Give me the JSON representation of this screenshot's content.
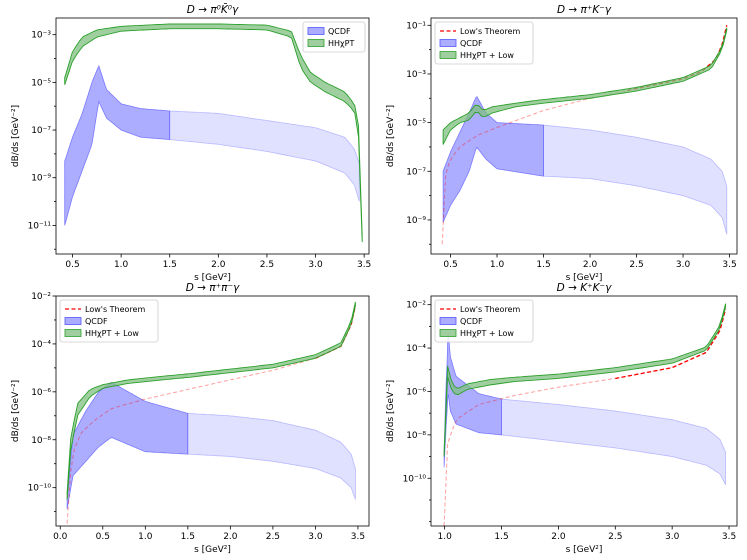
{
  "chart_data": [
    {
      "type": "area",
      "title": "D → π⁰K̄⁰γ",
      "xlabel": "s [GeV²]",
      "ylabel": "dB/ds [GeV⁻²]",
      "xlim": [
        0.33,
        3.55
      ],
      "ylog": true,
      "ylim_exp": [
        -12.2,
        -2.3
      ],
      "xticks": [
        0.5,
        1.0,
        1.5,
        2.0,
        2.5,
        3.0,
        3.5
      ],
      "xtick_labels": [
        "0.5",
        "1.0",
        "1.5",
        "2.0",
        "2.5",
        "3.0",
        "3.5"
      ],
      "yticks_exp": [
        -11,
        -9,
        -7,
        -5,
        -3
      ],
      "ytick_labels": [
        "10⁻¹¹",
        "10⁻⁹",
        "10⁻⁷",
        "10⁻⁵",
        "10⁻³"
      ],
      "legend_position": "top-right",
      "legend": [
        "QCDF",
        "HHχPT"
      ],
      "qcdf_lower": [
        [
          0.42,
          -11.0
        ],
        [
          0.5,
          -9.8
        ],
        [
          0.6,
          -8.7
        ],
        [
          0.7,
          -7.6
        ],
        [
          0.77,
          -5.8
        ],
        [
          0.85,
          -6.5
        ],
        [
          1.0,
          -7.0
        ],
        [
          1.2,
          -7.3
        ],
        [
          1.5,
          -7.4
        ],
        [
          2.0,
          -7.6
        ],
        [
          2.5,
          -7.9
        ],
        [
          3.0,
          -8.3
        ],
        [
          3.3,
          -8.8
        ],
        [
          3.4,
          -9.3
        ],
        [
          3.45,
          -10.0
        ]
      ],
      "qcdf_upper": [
        [
          0.42,
          -8.3
        ],
        [
          0.5,
          -7.3
        ],
        [
          0.6,
          -6.3
        ],
        [
          0.7,
          -5.0
        ],
        [
          0.77,
          -4.3
        ],
        [
          0.85,
          -5.3
        ],
        [
          1.0,
          -5.9
        ],
        [
          1.2,
          -6.1
        ],
        [
          1.5,
          -6.2
        ],
        [
          2.0,
          -6.3
        ],
        [
          2.5,
          -6.6
        ],
        [
          3.0,
          -6.9
        ],
        [
          3.3,
          -7.3
        ],
        [
          3.4,
          -7.8
        ],
        [
          3.45,
          -8.4
        ]
      ],
      "qcdf_strong_max_x": 1.5,
      "green_lower": [
        [
          0.42,
          -5.1
        ],
        [
          0.5,
          -4.1
        ],
        [
          0.6,
          -3.5
        ],
        [
          0.75,
          -3.1
        ],
        [
          1.0,
          -2.85
        ],
        [
          1.5,
          -2.75
        ],
        [
          2.0,
          -2.75
        ],
        [
          2.5,
          -2.8
        ],
        [
          2.75,
          -3.1
        ],
        [
          2.85,
          -4.4
        ],
        [
          2.95,
          -5.0
        ],
        [
          3.1,
          -5.4
        ],
        [
          3.3,
          -5.8
        ],
        [
          3.4,
          -6.2
        ],
        [
          3.45,
          -7.5
        ],
        [
          3.48,
          -11.7
        ]
      ],
      "green_upper": [
        [
          0.42,
          -4.8
        ],
        [
          0.5,
          -3.7
        ],
        [
          0.6,
          -3.1
        ],
        [
          0.75,
          -2.8
        ],
        [
          1.0,
          -2.65
        ],
        [
          1.5,
          -2.55
        ],
        [
          2.0,
          -2.55
        ],
        [
          2.5,
          -2.6
        ],
        [
          2.75,
          -2.85
        ],
        [
          2.85,
          -3.9
        ],
        [
          2.95,
          -4.6
        ],
        [
          3.1,
          -5.0
        ],
        [
          3.3,
          -5.4
        ],
        [
          3.4,
          -5.9
        ],
        [
          3.45,
          -7.0
        ],
        [
          3.48,
          -11.4
        ]
      ]
    },
    {
      "type": "area",
      "title": "D → π⁺K⁻γ",
      "xlabel": "s [GeV²]",
      "ylabel": "dB/ds [GeV⁻²]",
      "xlim": [
        0.29,
        3.58
      ],
      "ylog": true,
      "ylim_exp": [
        -10.4,
        -0.7
      ],
      "xticks": [
        0.5,
        1.0,
        1.5,
        2.0,
        2.5,
        3.0,
        3.5
      ],
      "xtick_labels": [
        "0.5",
        "1.0",
        "1.5",
        "2.0",
        "2.5",
        "3.0",
        "3.5"
      ],
      "yticks_exp": [
        -9,
        -7,
        -5,
        -3,
        -1
      ],
      "ytick_labels": [
        "10⁻⁹",
        "10⁻⁷",
        "10⁻⁵",
        "10⁻³",
        "10⁻¹"
      ],
      "legend_position": "top-left",
      "legend": [
        "Low's Theorem",
        "QCDF",
        "HHχPT + Low"
      ],
      "low_line": [
        [
          0.41,
          -10.0
        ],
        [
          0.45,
          -7.0
        ],
        [
          0.5,
          -6.5
        ],
        [
          0.6,
          -6.0
        ],
        [
          0.8,
          -5.5
        ],
        [
          1.0,
          -5.2
        ],
        [
          1.5,
          -4.5
        ],
        [
          2.0,
          -4.0
        ],
        [
          2.5,
          -3.6
        ],
        [
          3.0,
          -3.2
        ],
        [
          3.2,
          -2.9
        ],
        [
          3.35,
          -2.4
        ],
        [
          3.42,
          -1.8
        ],
        [
          3.47,
          -1.0
        ]
      ],
      "low_solid_from_x": 2.4,
      "qcdf_lower": [
        [
          0.42,
          -9.1
        ],
        [
          0.5,
          -8.4
        ],
        [
          0.6,
          -7.8
        ],
        [
          0.7,
          -7.0
        ],
        [
          0.78,
          -6.0
        ],
        [
          0.88,
          -6.5
        ],
        [
          1.0,
          -6.9
        ],
        [
          1.5,
          -7.2
        ],
        [
          2.0,
          -7.3
        ],
        [
          2.5,
          -7.6
        ],
        [
          3.0,
          -8.0
        ],
        [
          3.3,
          -8.4
        ],
        [
          3.42,
          -8.9
        ],
        [
          3.47,
          -9.6
        ]
      ],
      "qcdf_upper": [
        [
          0.42,
          -7.0
        ],
        [
          0.5,
          -6.2
        ],
        [
          0.6,
          -5.4
        ],
        [
          0.7,
          -4.6
        ],
        [
          0.78,
          -3.9
        ],
        [
          0.88,
          -4.6
        ],
        [
          1.0,
          -5.0
        ],
        [
          1.5,
          -5.1
        ],
        [
          2.0,
          -5.3
        ],
        [
          2.5,
          -5.6
        ],
        [
          3.0,
          -6.0
        ],
        [
          3.3,
          -6.5
        ],
        [
          3.42,
          -7.0
        ],
        [
          3.47,
          -7.6
        ]
      ],
      "qcdf_strong_max_x": 1.5,
      "green_lower": [
        [
          0.42,
          -5.9
        ],
        [
          0.5,
          -5.3
        ],
        [
          0.6,
          -5.0
        ],
        [
          0.7,
          -4.9
        ],
        [
          0.78,
          -4.5
        ],
        [
          0.85,
          -4.8
        ],
        [
          0.95,
          -4.6
        ],
        [
          1.2,
          -4.35
        ],
        [
          1.5,
          -4.2
        ],
        [
          2.0,
          -4.0
        ],
        [
          2.5,
          -3.7
        ],
        [
          3.0,
          -3.3
        ],
        [
          3.3,
          -2.8
        ],
        [
          3.42,
          -2.0
        ],
        [
          3.47,
          -1.2
        ]
      ],
      "green_upper": [
        [
          0.42,
          -5.3
        ],
        [
          0.5,
          -5.0
        ],
        [
          0.6,
          -4.8
        ],
        [
          0.7,
          -4.6
        ],
        [
          0.78,
          -4.2
        ],
        [
          0.85,
          -4.5
        ],
        [
          0.95,
          -4.35
        ],
        [
          1.2,
          -4.2
        ],
        [
          1.5,
          -4.05
        ],
        [
          2.0,
          -3.85
        ],
        [
          2.5,
          -3.55
        ],
        [
          3.0,
          -3.15
        ],
        [
          3.3,
          -2.65
        ],
        [
          3.42,
          -1.9
        ],
        [
          3.47,
          -1.1
        ]
      ]
    },
    {
      "type": "area",
      "title": "D → π⁺π⁻γ",
      "xlabel": "s [GeV²]",
      "ylabel": "dB/ds [GeV⁻²]",
      "xlim": [
        -0.05,
        3.63
      ],
      "ylog": true,
      "ylim_exp": [
        -11.6,
        -2.0
      ],
      "xticks": [
        0.0,
        0.5,
        1.0,
        1.5,
        2.0,
        2.5,
        3.0,
        3.5
      ],
      "xtick_labels": [
        "0.0",
        "0.5",
        "1.0",
        "1.5",
        "2.0",
        "2.5",
        "3.0",
        "3.5"
      ],
      "yticks_exp": [
        -10,
        -8,
        -6,
        -4,
        -2
      ],
      "ytick_labels": [
        "10⁻¹⁰",
        "10⁻⁸",
        "10⁻⁶",
        "10⁻⁴",
        "10⁻²"
      ],
      "legend_position": "top-left",
      "legend": [
        "Low's Theorem",
        "QCDF",
        "HHχPT + Low"
      ],
      "low_line": [
        [
          0.08,
          -11.5
        ],
        [
          0.1,
          -10.0
        ],
        [
          0.15,
          -8.5
        ],
        [
          0.25,
          -7.7
        ],
        [
          0.4,
          -7.2
        ],
        [
          0.6,
          -6.7
        ],
        [
          1.0,
          -6.3
        ],
        [
          1.5,
          -5.9
        ],
        [
          2.0,
          -5.5
        ],
        [
          2.5,
          -5.1
        ],
        [
          3.0,
          -4.6
        ],
        [
          3.3,
          -4.1
        ],
        [
          3.42,
          -3.2
        ],
        [
          3.47,
          -2.4
        ]
      ],
      "low_solid_from_x": 3.0,
      "qcdf_lower": [
        [
          0.08,
          -10.9
        ],
        [
          0.15,
          -9.5
        ],
        [
          0.3,
          -8.9
        ],
        [
          0.45,
          -8.3
        ],
        [
          0.6,
          -7.9
        ],
        [
          0.8,
          -8.2
        ],
        [
          1.0,
          -8.5
        ],
        [
          1.5,
          -8.6
        ],
        [
          2.0,
          -8.7
        ],
        [
          2.5,
          -8.9
        ],
        [
          3.0,
          -9.2
        ],
        [
          3.3,
          -9.6
        ],
        [
          3.42,
          -10.0
        ],
        [
          3.47,
          -10.5
        ]
      ],
      "qcdf_upper": [
        [
          0.08,
          -10.5
        ],
        [
          0.15,
          -7.8
        ],
        [
          0.3,
          -6.8
        ],
        [
          0.45,
          -6.0
        ],
        [
          0.6,
          -5.6
        ],
        [
          0.8,
          -6.0
        ],
        [
          1.0,
          -6.4
        ],
        [
          1.5,
          -6.9
        ],
        [
          2.0,
          -7.0
        ],
        [
          2.5,
          -7.2
        ],
        [
          3.0,
          -7.6
        ],
        [
          3.3,
          -8.1
        ],
        [
          3.42,
          -8.6
        ],
        [
          3.47,
          -9.2
        ]
      ],
      "qcdf_strong_max_x": 1.5,
      "green_lower": [
        [
          0.08,
          -10.5
        ],
        [
          0.12,
          -8.5
        ],
        [
          0.2,
          -7.0
        ],
        [
          0.35,
          -6.2
        ],
        [
          0.5,
          -5.85
        ],
        [
          0.8,
          -5.65
        ],
        [
          1.2,
          -5.5
        ],
        [
          1.5,
          -5.4
        ],
        [
          2.0,
          -5.2
        ],
        [
          2.5,
          -5.0
        ],
        [
          3.0,
          -4.6
        ],
        [
          3.3,
          -4.1
        ],
        [
          3.42,
          -3.2
        ],
        [
          3.47,
          -2.4
        ]
      ],
      "green_upper": [
        [
          0.08,
          -10.2
        ],
        [
          0.12,
          -8.0
        ],
        [
          0.2,
          -6.5
        ],
        [
          0.35,
          -5.9
        ],
        [
          0.5,
          -5.7
        ],
        [
          0.8,
          -5.5
        ],
        [
          1.2,
          -5.35
        ],
        [
          1.5,
          -5.25
        ],
        [
          2.0,
          -5.05
        ],
        [
          2.5,
          -4.85
        ],
        [
          3.0,
          -4.45
        ],
        [
          3.3,
          -3.95
        ],
        [
          3.42,
          -3.05
        ],
        [
          3.47,
          -2.25
        ]
      ]
    },
    {
      "type": "area",
      "title": "D → K⁺K⁻γ",
      "xlabel": "s [GeV²]",
      "ylabel": "dB/ds [GeV⁻²]",
      "xlim": [
        0.88,
        3.57
      ],
      "ylog": true,
      "ylim_exp": [
        -12.2,
        -1.6
      ],
      "xticks": [
        1.0,
        1.5,
        2.0,
        2.5,
        3.0,
        3.5
      ],
      "xtick_labels": [
        "1.0",
        "1.5",
        "2.0",
        "2.5",
        "3.0",
        "3.5"
      ],
      "yticks_exp": [
        -10,
        -8,
        -6,
        -4,
        -2
      ],
      "ytick_labels": [
        "10⁻¹⁰",
        "10⁻⁸",
        "10⁻⁶",
        "10⁻⁴",
        "10⁻²"
      ],
      "legend_position": "top-left",
      "legend": [
        "Low's Theorem",
        "QCDF",
        "HHχPT + Low"
      ],
      "low_line": [
        [
          0.995,
          -12.2
        ],
        [
          1.0,
          -10.0
        ],
        [
          1.02,
          -8.5
        ],
        [
          1.1,
          -7.3
        ],
        [
          1.3,
          -6.6
        ],
        [
          1.6,
          -6.2
        ],
        [
          2.0,
          -5.8
        ],
        [
          2.5,
          -5.4
        ],
        [
          3.0,
          -4.9
        ],
        [
          3.3,
          -4.2
        ],
        [
          3.42,
          -3.2
        ],
        [
          3.47,
          -2.2
        ]
      ],
      "low_solid_from_x": 2.5,
      "qcdf_lower": [
        [
          0.995,
          -9.5
        ],
        [
          1.01,
          -7.9
        ],
        [
          1.02,
          -7.0
        ],
        [
          1.03,
          -6.0
        ],
        [
          1.05,
          -6.9
        ],
        [
          1.1,
          -7.5
        ],
        [
          1.3,
          -7.9
        ],
        [
          1.5,
          -8.0
        ],
        [
          2.0,
          -8.3
        ],
        [
          2.5,
          -8.6
        ],
        [
          3.0,
          -9.0
        ],
        [
          3.3,
          -9.4
        ],
        [
          3.42,
          -9.8
        ],
        [
          3.47,
          -10.3
        ]
      ],
      "qcdf_upper": [
        [
          0.995,
          -9.0
        ],
        [
          1.01,
          -6.0
        ],
        [
          1.02,
          -4.8
        ],
        [
          1.03,
          -3.1
        ],
        [
          1.05,
          -4.4
        ],
        [
          1.1,
          -5.3
        ],
        [
          1.3,
          -6.1
        ],
        [
          1.5,
          -6.35
        ],
        [
          2.0,
          -6.6
        ],
        [
          2.5,
          -6.9
        ],
        [
          3.0,
          -7.3
        ],
        [
          3.3,
          -7.7
        ],
        [
          3.42,
          -8.2
        ],
        [
          3.47,
          -8.8
        ]
      ],
      "qcdf_strong_max_x": 1.5,
      "green_lower": [
        [
          0.995,
          -9.0
        ],
        [
          1.01,
          -7.0
        ],
        [
          1.03,
          -4.9
        ],
        [
          1.05,
          -5.8
        ],
        [
          1.1,
          -6.2
        ],
        [
          1.2,
          -5.9
        ],
        [
          1.4,
          -5.7
        ],
        [
          1.6,
          -5.55
        ],
        [
          2.0,
          -5.4
        ],
        [
          2.5,
          -5.1
        ],
        [
          3.0,
          -4.7
        ],
        [
          3.3,
          -4.1
        ],
        [
          3.42,
          -3.1
        ],
        [
          3.47,
          -2.1
        ]
      ],
      "green_upper": [
        [
          0.995,
          -8.7
        ],
        [
          1.01,
          -6.5
        ],
        [
          1.03,
          -4.4
        ],
        [
          1.05,
          -5.4
        ],
        [
          1.1,
          -5.9
        ],
        [
          1.2,
          -5.65
        ],
        [
          1.4,
          -5.45
        ],
        [
          1.6,
          -5.35
        ],
        [
          2.0,
          -5.2
        ],
        [
          2.5,
          -4.9
        ],
        [
          3.0,
          -4.5
        ],
        [
          3.3,
          -3.95
        ],
        [
          3.42,
          -2.95
        ],
        [
          3.47,
          -1.95
        ]
      ]
    }
  ]
}
